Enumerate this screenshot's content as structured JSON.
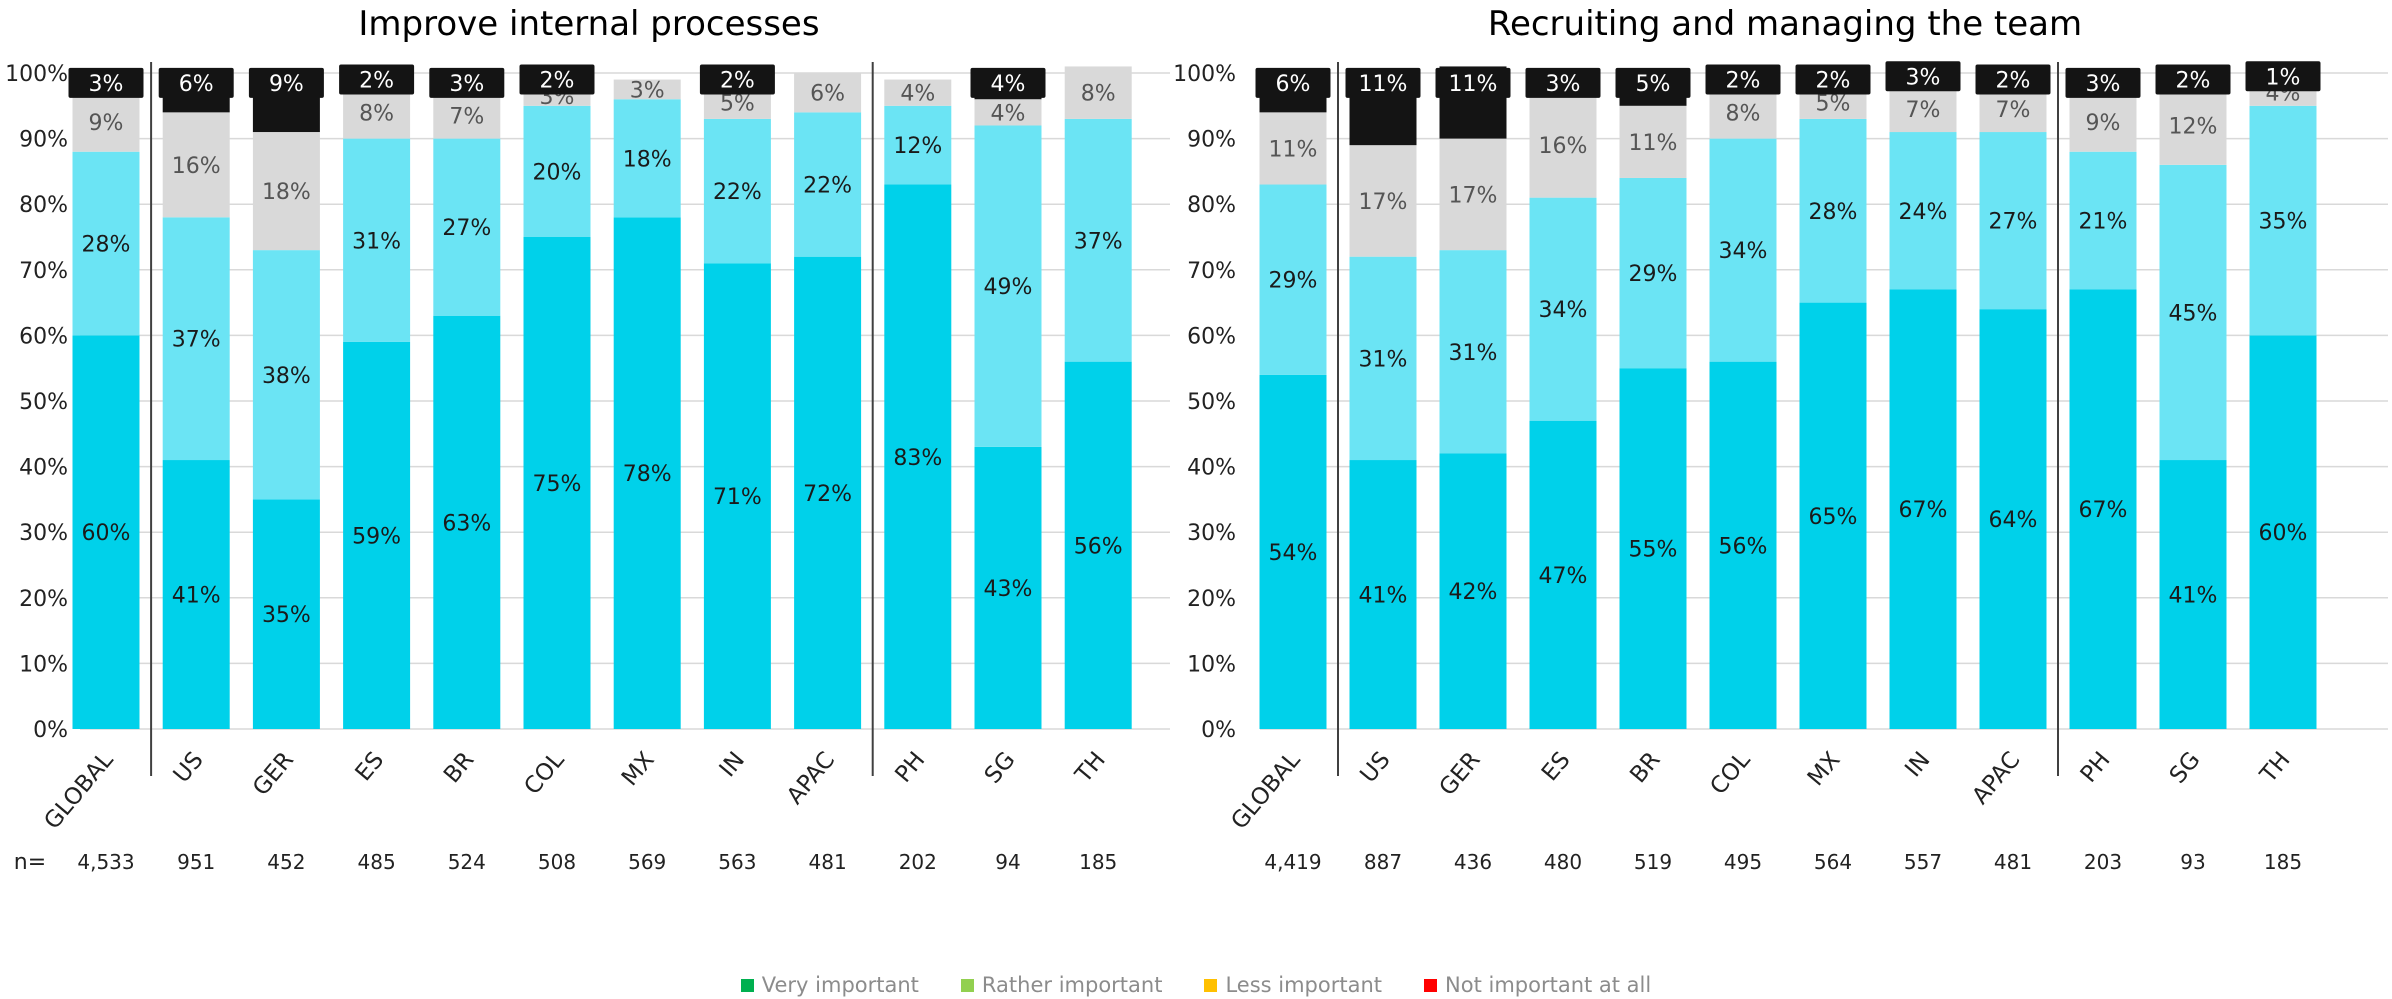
{
  "chart_data": [
    {
      "type": "bar",
      "stacked": true,
      "title": "Improve internal processes",
      "categories": [
        "GLOBAL",
        "US",
        "GER",
        "ES",
        "BR",
        "COL",
        "MX",
        "IN",
        "APAC",
        "PH",
        "SG",
        "TH"
      ],
      "n_label": "n=",
      "n_values": [
        "4,533",
        "951",
        "452",
        "485",
        "524",
        "508",
        "569",
        "563",
        "481",
        "202",
        "94",
        "185"
      ],
      "group_separators_after": [
        "GLOBAL",
        "APAC"
      ],
      "ylim": [
        0,
        100
      ],
      "yticks": [
        "0%",
        "10%",
        "20%",
        "30%",
        "40%",
        "50%",
        "60%",
        "70%",
        "80%",
        "90%",
        "100%"
      ],
      "grid": true,
      "series": [
        {
          "name": "Very important",
          "values": [
            60,
            41,
            35,
            59,
            63,
            75,
            78,
            71,
            72,
            83,
            43,
            56
          ]
        },
        {
          "name": "Rather important",
          "values": [
            28,
            37,
            38,
            31,
            27,
            20,
            18,
            22,
            22,
            12,
            49,
            37
          ]
        },
        {
          "name": "Less important",
          "values": [
            9,
            16,
            18,
            8,
            7,
            3,
            3,
            5,
            6,
            4,
            4,
            8
          ]
        },
        {
          "name": "Not important at all",
          "values": [
            3,
            6,
            9,
            2,
            3,
            2,
            null,
            2,
            null,
            null,
            4,
            null
          ]
        }
      ]
    },
    {
      "type": "bar",
      "stacked": true,
      "title": "Recruiting and managing the team",
      "categories": [
        "GLOBAL",
        "US",
        "GER",
        "ES",
        "BR",
        "COL",
        "MX",
        "IN",
        "APAC",
        "PH",
        "SG",
        "TH"
      ],
      "n_label": "",
      "n_values": [
        "4,419",
        "887",
        "436",
        "480",
        "519",
        "495",
        "564",
        "557",
        "481",
        "203",
        "93",
        "185"
      ],
      "group_separators_after": [
        "GLOBAL",
        "APAC"
      ],
      "ylim": [
        0,
        100
      ],
      "yticks": [
        "0%",
        "10%",
        "20%",
        "30%",
        "40%",
        "50%",
        "60%",
        "70%",
        "80%",
        "90%",
        "100%"
      ],
      "grid": true,
      "series": [
        {
          "name": "Very important",
          "values": [
            54,
            41,
            42,
            47,
            55,
            56,
            65,
            67,
            64,
            67,
            41,
            60
          ]
        },
        {
          "name": "Rather important",
          "values": [
            29,
            31,
            31,
            34,
            29,
            34,
            28,
            24,
            27,
            21,
            45,
            35
          ]
        },
        {
          "name": "Less important",
          "values": [
            11,
            17,
            17,
            16,
            11,
            8,
            5,
            7,
            7,
            9,
            12,
            4
          ]
        },
        {
          "name": "Not important at all",
          "values": [
            6,
            11,
            11,
            3,
            5,
            2,
            2,
            3,
            2,
            3,
            2,
            1
          ]
        }
      ]
    }
  ],
  "legend": {
    "placement": "bottom-center",
    "items": [
      {
        "label": "Very important",
        "color": "#00b050"
      },
      {
        "label": "Rather important",
        "color": "#92d050"
      },
      {
        "label": "Less important",
        "color": "#ffc000"
      },
      {
        "label": "Not important at all",
        "color": "#ff0000"
      }
    ]
  },
  "colors": {
    "very": "#00d1ea",
    "rather": "#6be4f4",
    "less": "#d9d9d9",
    "not": "#141414",
    "grid": "#d9d9d9",
    "separator": "#404040"
  }
}
